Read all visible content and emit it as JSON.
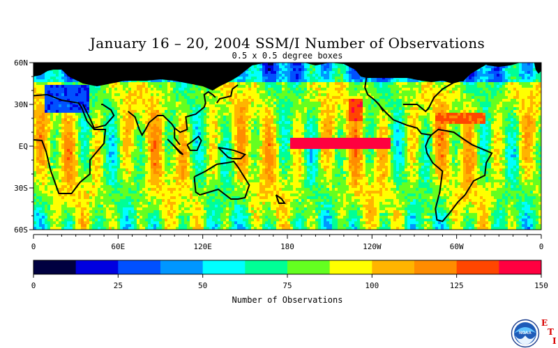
{
  "title": "January 16 – 20, 2004 SSM/I Number of Observations",
  "subtitle": "0.5 x 0.5 degree boxes",
  "map": {
    "lat_labels": [
      "60N",
      "30N",
      "EQ",
      "30S",
      "60S"
    ],
    "lon_labels": [
      "0",
      "60E",
      "120E",
      "180",
      "120W",
      "60W",
      "0"
    ],
    "land_color": "#000000",
    "coast_color": "#000000"
  },
  "colorbar": {
    "label": "Number of Observations",
    "tick_labels": [
      "0",
      "25",
      "50",
      "75",
      "100",
      "125",
      "150"
    ],
    "colors": [
      "#000040",
      "#0000e0",
      "#0050ff",
      "#0096ff",
      "#00ffff",
      "#00ff96",
      "#64ff20",
      "#ffff00",
      "#ffb400",
      "#ff8c00",
      "#ff4600",
      "#ff0040"
    ]
  },
  "logo": {
    "name": "NOAA",
    "side_letters": [
      "E",
      "T",
      "I"
    ]
  }
}
